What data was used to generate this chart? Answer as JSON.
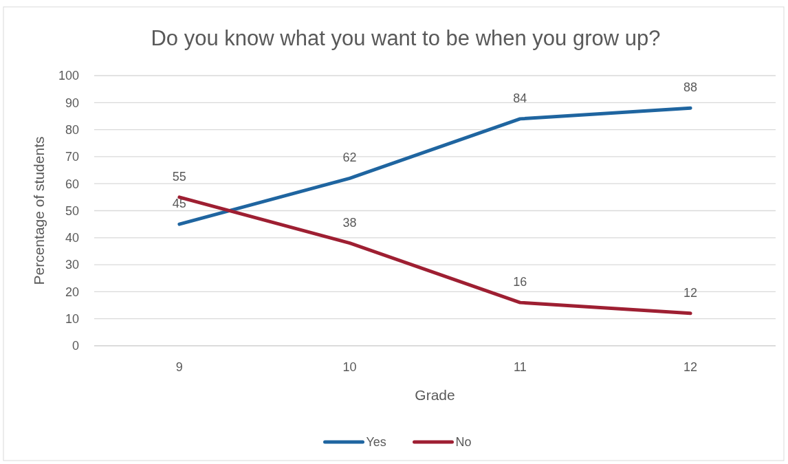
{
  "chart_data": {
    "type": "line",
    "title": "Do you know what you want to be when you grow up?",
    "xlabel": "Grade",
    "ylabel": "Percentage of students",
    "categories": [
      "9",
      "10",
      "11",
      "12"
    ],
    "series": [
      {
        "name": "Yes",
        "color": "#1f65a0",
        "values": [
          45,
          62,
          84,
          88
        ]
      },
      {
        "name": "No",
        "color": "#9e1f32",
        "values": [
          55,
          38,
          16,
          12
        ]
      }
    ],
    "ylim": [
      0,
      100
    ],
    "yticks": [
      0,
      10,
      20,
      30,
      40,
      50,
      60,
      70,
      80,
      90,
      100
    ],
    "grid": "y",
    "legend": "bottom",
    "data_labels": true,
    "marker": "none",
    "line_style": "solid"
  }
}
